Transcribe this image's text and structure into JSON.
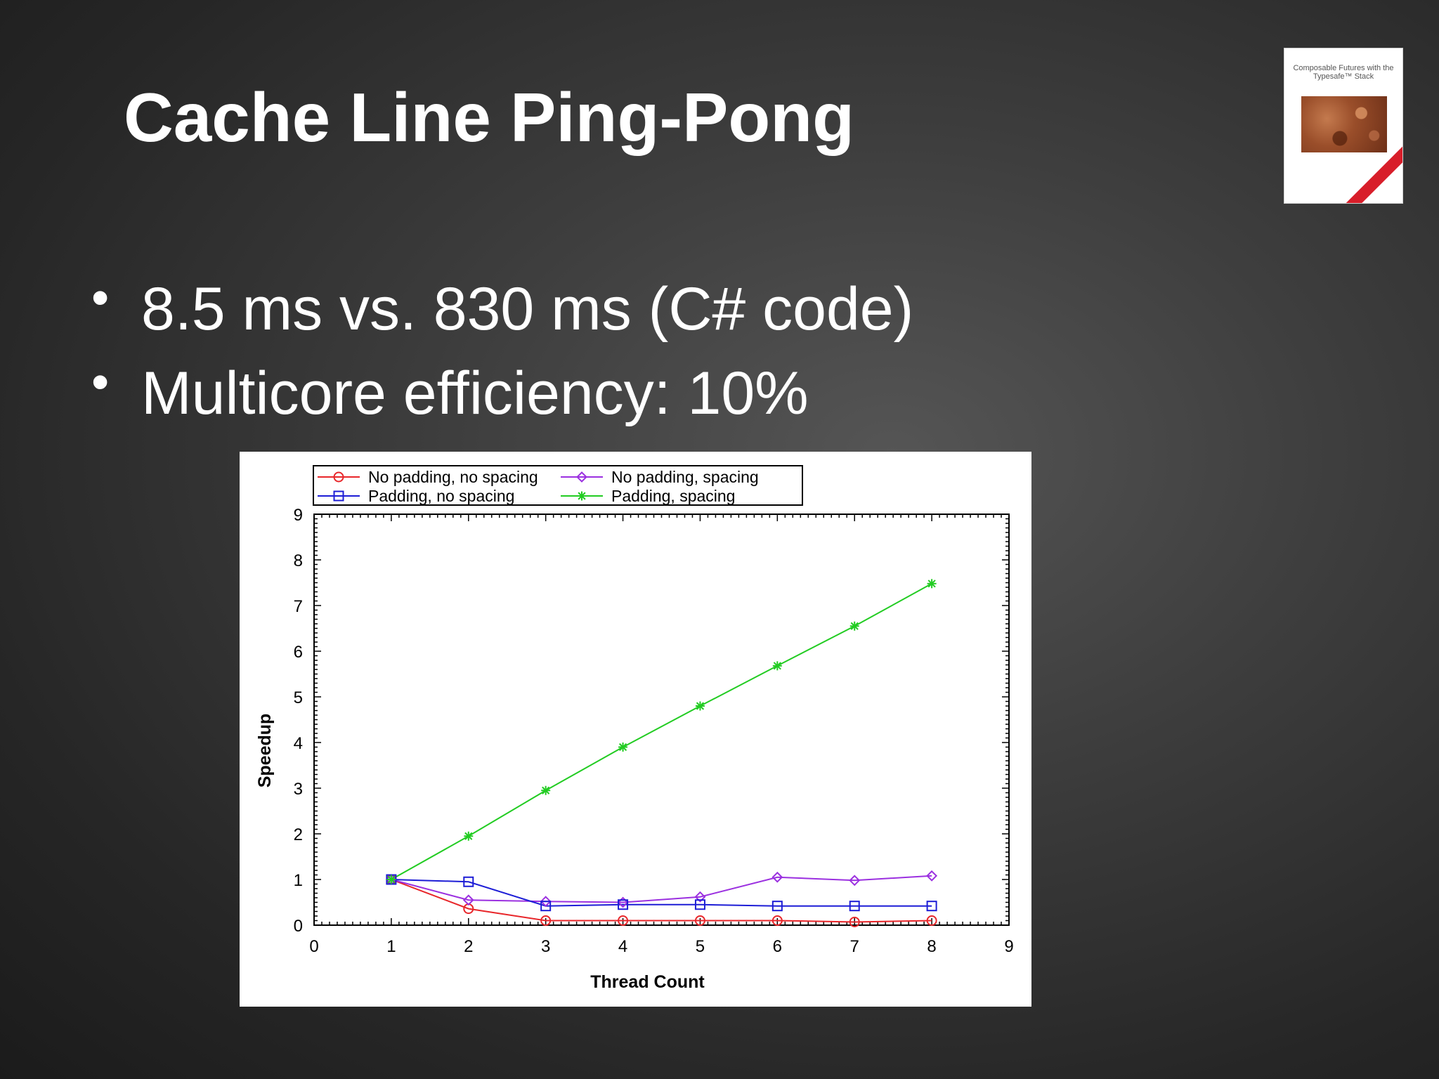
{
  "slide": {
    "title": "Cache Line Ping-Pong",
    "bullets": [
      "8.5 ms vs. 830 ms (C# code)",
      "Multicore efficiency: 10%"
    ]
  },
  "book_cover": {
    "title": "Composable Futures with the Typesafe™ Stack"
  },
  "chart_data": {
    "type": "line",
    "xlabel": "Thread Count",
    "ylabel": "Speedup",
    "xlim": [
      0,
      9
    ],
    "ylim": [
      0,
      9
    ],
    "xticks": [
      0,
      1,
      2,
      3,
      4,
      5,
      6,
      7,
      8,
      9
    ],
    "yticks": [
      0,
      1,
      2,
      3,
      4,
      5,
      6,
      7,
      8,
      9
    ],
    "x": [
      1,
      2,
      3,
      4,
      5,
      6,
      7,
      8
    ],
    "legend_position": "top",
    "grid": false,
    "series": [
      {
        "name": "No padding, no spacing",
        "color": "#e8262a",
        "marker": "circle",
        "values": [
          1.0,
          0.36,
          0.1,
          0.1,
          0.1,
          0.1,
          0.07,
          0.1
        ]
      },
      {
        "name": "No padding, spacing",
        "color": "#9b30e0",
        "marker": "diamond",
        "values": [
          1.0,
          0.55,
          0.52,
          0.5,
          0.62,
          1.05,
          0.98,
          1.08
        ]
      },
      {
        "name": "Padding, no spacing",
        "color": "#1d1dd6",
        "marker": "square",
        "values": [
          1.0,
          0.95,
          0.42,
          0.45,
          0.45,
          0.42,
          0.42,
          0.42
        ]
      },
      {
        "name": "Padding, spacing",
        "color": "#22cc22",
        "marker": "asterisk",
        "values": [
          1.0,
          1.95,
          2.95,
          3.9,
          4.8,
          5.68,
          6.55,
          7.48
        ]
      }
    ]
  }
}
